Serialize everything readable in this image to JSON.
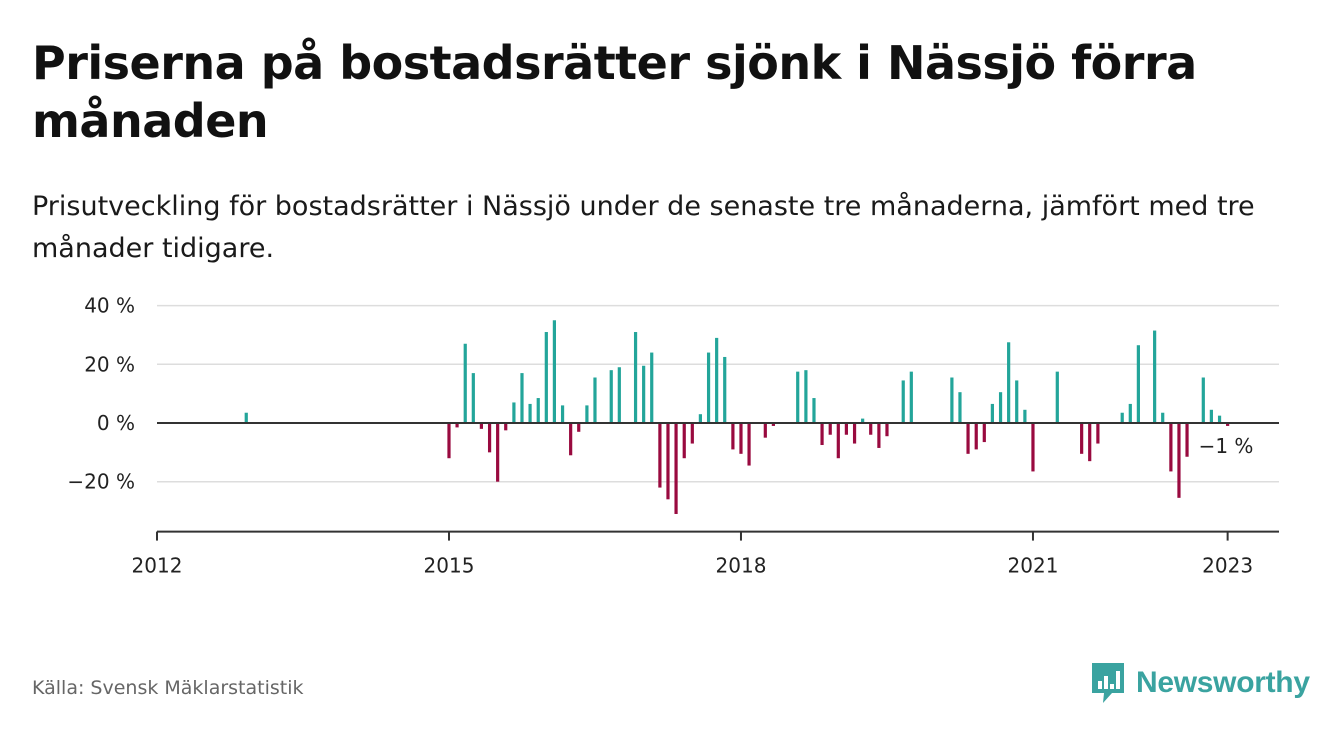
{
  "title": "Priserna på bostadsrätter sjönk i Nässjö förra månaden",
  "subtitle": "Prisutveckling för bostadsrätter i Nässjö under de senaste tre månaderna, jämfört med tre månader tidigare.",
  "source": "Källa: Svensk Mäklarstatistik",
  "brand": {
    "name": "Newsworthy",
    "color": "#3aa3a0",
    "icon": "bar-chart-speech-bubble-icon"
  },
  "end_label": "−1 %",
  "colors": {
    "positive": "#23a59a",
    "negative": "#990a3f",
    "grid": "#dddddd",
    "axis": "#333333"
  },
  "chart_data": {
    "type": "bar",
    "title": "Priserna på bostadsrätter sjönk i Nässjö förra månaden",
    "ylabel": "",
    "xlabel": "",
    "ylim": [
      -37,
      40
    ],
    "xlim": [
      2012.0,
      2023.5
    ],
    "yticks": [
      {
        "value": 40,
        "label": "40 %"
      },
      {
        "value": 20,
        "label": "20 %"
      },
      {
        "value": 0,
        "label": "0 %"
      },
      {
        "value": -20,
        "label": "−20 %"
      }
    ],
    "xticks": [
      {
        "value": 2012,
        "label": "2012"
      },
      {
        "value": 2015,
        "label": "2015"
      },
      {
        "value": 2018,
        "label": "2018"
      },
      {
        "value": 2021,
        "label": "2021"
      },
      {
        "value": 2023,
        "label": "2023"
      }
    ],
    "grid": true,
    "x": [
      2012.917,
      2015.0,
      2015.083,
      2015.167,
      2015.25,
      2015.333,
      2015.417,
      2015.5,
      2015.583,
      2015.667,
      2015.75,
      2015.833,
      2015.917,
      2016.0,
      2016.083,
      2016.167,
      2016.25,
      2016.333,
      2016.417,
      2016.5,
      2016.583,
      2016.667,
      2016.75,
      2016.833,
      2016.917,
      2017.0,
      2017.083,
      2017.167,
      2017.25,
      2017.333,
      2017.417,
      2017.5,
      2017.583,
      2017.667,
      2017.75,
      2017.833,
      2017.917,
      2018.0,
      2018.083,
      2018.167,
      2018.25,
      2018.333,
      2018.417,
      2018.5,
      2018.583,
      2018.667,
      2018.75,
      2018.833,
      2018.917,
      2019.0,
      2019.083,
      2019.167,
      2019.25,
      2019.333,
      2019.417,
      2019.5,
      2019.583,
      2019.667,
      2019.75,
      2020.167,
      2020.25,
      2020.333,
      2020.417,
      2020.5,
      2020.583,
      2020.667,
      2020.75,
      2020.833,
      2020.917,
      2021.0,
      2021.25,
      2021.5,
      2021.583,
      2021.667,
      2021.917,
      2022.0,
      2022.083,
      2022.167,
      2022.25,
      2022.333,
      2022.417,
      2022.5,
      2022.583,
      2022.75,
      2022.833,
      2022.917,
      2023.0
    ],
    "values": [
      3.5,
      -12,
      -1.5,
      27,
      17,
      -2,
      -10,
      -20,
      -2.5,
      7,
      17,
      6.5,
      8.5,
      31,
      35,
      6,
      -11,
      -3,
      6,
      15.5,
      0,
      18,
      19,
      0,
      31,
      19.5,
      24,
      -22,
      -26,
      -31,
      -12,
      -7,
      3,
      24,
      29,
      22.5,
      -9,
      -10.5,
      -14.5,
      0,
      -5,
      -1,
      0,
      0,
      17.5,
      18,
      8.5,
      -7.5,
      -4,
      -12,
      -4,
      -7,
      1.5,
      -4,
      -8.5,
      -4.5,
      0,
      14.5,
      17.5,
      15.5,
      10.5,
      -10.5,
      -9,
      -6.5,
      6.5,
      10.5,
      27.5,
      14.5,
      4.5,
      -16.5,
      17.5,
      -10.5,
      -13,
      -7,
      3.5,
      6.5,
      26.5,
      0,
      31.5,
      3.5,
      -16.5,
      -25.5,
      -11.5,
      15.5,
      4.5,
      2.5,
      -1
    ]
  }
}
